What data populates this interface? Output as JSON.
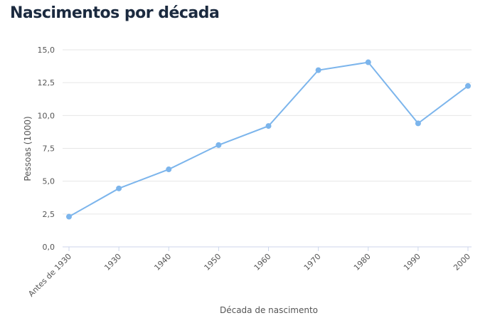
{
  "chart_data": {
    "type": "line",
    "title": "Nascimentos por década",
    "xlabel": "Década de nascimento",
    "ylabel": "Pessoas (1000)",
    "categories": [
      "Antes de 1930",
      "1930",
      "1940",
      "1950",
      "1960",
      "1970",
      "1980",
      "1990",
      "2000"
    ],
    "values": [
      2.3,
      4.45,
      5.9,
      7.75,
      9.2,
      13.45,
      14.05,
      9.4,
      12.25
    ],
    "ylim": [
      0,
      15
    ],
    "yticks": [
      "0,0",
      "2,5",
      "5,0",
      "7,5",
      "10,0",
      "12,5",
      "15,0"
    ],
    "grid": true,
    "legend": "none",
    "line_color": "#7cb5ec"
  }
}
